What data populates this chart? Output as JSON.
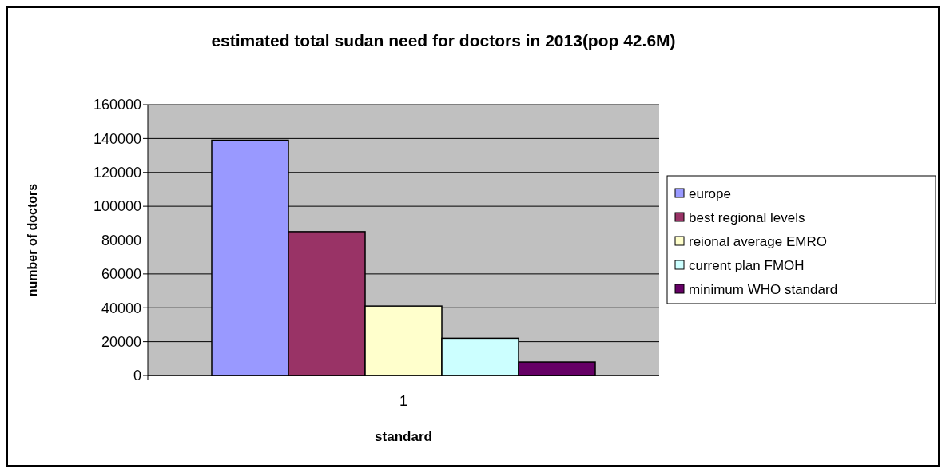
{
  "chart_data": {
    "type": "bar",
    "title": "estimated total sudan need for doctors in 2013(pop 42.6M)",
    "xlabel": "standard",
    "ylabel": "number of doctors",
    "categories": [
      "1"
    ],
    "series": [
      {
        "name": "europe",
        "color": "#9999ff",
        "values": [
          139000
        ]
      },
      {
        "name": "best regional levels",
        "color": "#993366",
        "values": [
          85000
        ]
      },
      {
        "name": "reional average EMRO",
        "color": "#ffffcc",
        "values": [
          41000
        ]
      },
      {
        "name": "current plan FMOH",
        "color": "#ccffff",
        "values": [
          22000
        ]
      },
      {
        "name": "minimum WHO standard",
        "color": "#660066",
        "values": [
          8000
        ]
      }
    ],
    "ylim": [
      0,
      160000
    ],
    "yticks": [
      0,
      20000,
      40000,
      60000,
      80000,
      100000,
      120000,
      140000,
      160000
    ],
    "grid": "y",
    "legend": "right"
  }
}
